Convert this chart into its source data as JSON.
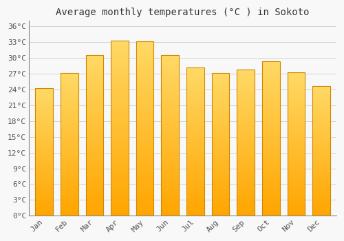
{
  "title": "Average monthly temperatures (°C ) in Sokoto",
  "months": [
    "Jan",
    "Feb",
    "Mar",
    "Apr",
    "May",
    "Jun",
    "Jul",
    "Aug",
    "Sep",
    "Oct",
    "Nov",
    "Dec"
  ],
  "temperatures": [
    24.2,
    27.1,
    30.5,
    33.3,
    33.1,
    30.5,
    28.1,
    27.1,
    27.8,
    29.3,
    27.2,
    24.6
  ],
  "bar_color_top": "#FFD966",
  "bar_color_bottom": "#FFA500",
  "bar_edge_color": "#CC8800",
  "background_color": "#F8F8F8",
  "plot_bg_color": "#F8F8F8",
  "grid_color": "#CCCCCC",
  "title_color": "#333333",
  "tick_color": "#555555",
  "yticks": [
    0,
    3,
    6,
    9,
    12,
    15,
    18,
    21,
    24,
    27,
    30,
    33,
    36
  ],
  "ylim": [
    0,
    37
  ],
  "title_fontsize": 10,
  "tick_fontsize": 8,
  "font_family": "monospace",
  "bar_width": 0.7,
  "n_gradient_segments": 60
}
